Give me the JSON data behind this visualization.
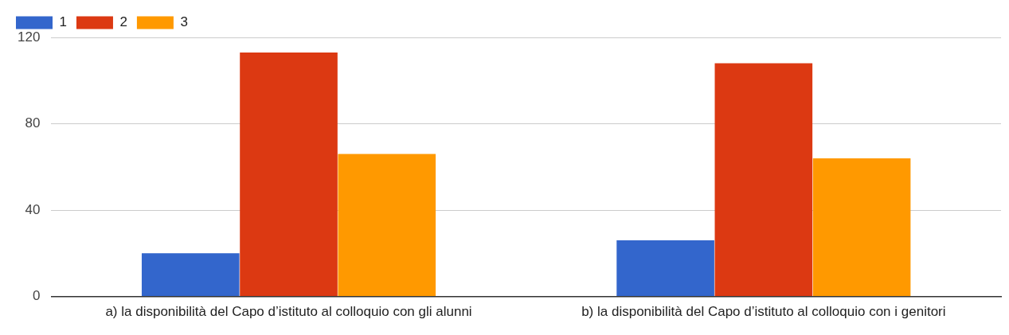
{
  "chart_data": {
    "type": "bar",
    "categories": [
      "a) la disponibilità del Capo d’istituto al colloquio con gli alunni",
      "b) la disponibilità del Capo d’istituto al colloquio con i genitori"
    ],
    "series": [
      {
        "name": "1",
        "color": "#3366cc",
        "values": [
          20,
          26
        ]
      },
      {
        "name": "2",
        "color": "#dc3912",
        "values": [
          113,
          108
        ]
      },
      {
        "name": "3",
        "color": "#ff9900",
        "values": [
          66,
          64
        ]
      }
    ],
    "ylim": [
      0,
      120
    ],
    "yticks": [
      0,
      40,
      80,
      120
    ],
    "grid": "y",
    "legend": "top left"
  }
}
